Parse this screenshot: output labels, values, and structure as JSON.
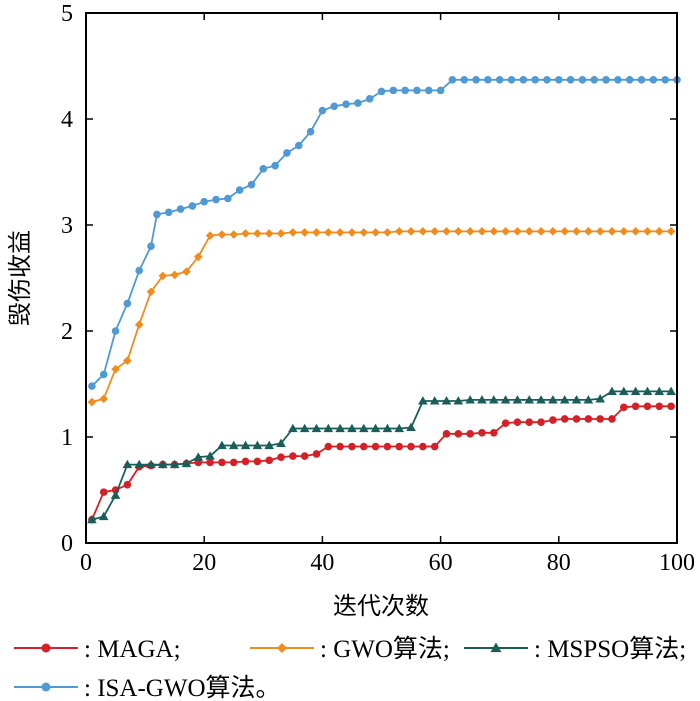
{
  "chart_data": {
    "type": "line",
    "xlabel": "迭代次数",
    "ylabel": "毁伤收益",
    "xlim": [
      0,
      100
    ],
    "ylim": [
      0,
      5
    ],
    "x_ticks": [
      "0",
      "20",
      "40",
      "60",
      "80",
      "100"
    ],
    "y_ticks": [
      "0",
      "1",
      "2",
      "3",
      "4",
      "5"
    ],
    "grid": false,
    "legend_position": "bottom",
    "series": [
      {
        "name": "MAGA",
        "legend_label": ": MAGA;",
        "color": "#d42026",
        "marker": "circle",
        "x": [
          1,
          3,
          5,
          7,
          9,
          11,
          13,
          15,
          17,
          19,
          21,
          23,
          25,
          27,
          29,
          31,
          33,
          35,
          37,
          39,
          41,
          43,
          45,
          47,
          49,
          51,
          53,
          55,
          57,
          59,
          61,
          63,
          65,
          67,
          69,
          71,
          73,
          75,
          77,
          79,
          81,
          83,
          85,
          87,
          89,
          91,
          93,
          95,
          97,
          99
        ],
        "values": [
          0.22,
          0.48,
          0.5,
          0.55,
          0.72,
          0.73,
          0.74,
          0.74,
          0.75,
          0.76,
          0.76,
          0.76,
          0.76,
          0.77,
          0.77,
          0.78,
          0.81,
          0.82,
          0.82,
          0.84,
          0.91,
          0.91,
          0.91,
          0.91,
          0.91,
          0.91,
          0.91,
          0.91,
          0.91,
          0.91,
          1.03,
          1.03,
          1.03,
          1.04,
          1.04,
          1.13,
          1.14,
          1.14,
          1.14,
          1.16,
          1.17,
          1.17,
          1.17,
          1.17,
          1.17,
          1.28,
          1.29,
          1.29,
          1.29,
          1.29
        ]
      },
      {
        "name": "GWO算法",
        "legend_label": ": GWO算法;",
        "color": "#f08c1b",
        "marker": "diamond",
        "x": [
          1,
          3,
          5,
          7,
          9,
          11,
          13,
          15,
          17,
          19,
          21,
          23,
          25,
          27,
          29,
          31,
          33,
          35,
          37,
          39,
          41,
          43,
          45,
          47,
          49,
          51,
          53,
          55,
          57,
          59,
          61,
          63,
          65,
          67,
          69,
          71,
          73,
          75,
          77,
          79,
          81,
          83,
          85,
          87,
          89,
          91,
          93,
          95,
          97,
          99
        ],
        "values": [
          1.33,
          1.36,
          1.64,
          1.72,
          2.06,
          2.37,
          2.52,
          2.53,
          2.56,
          2.7,
          2.9,
          2.91,
          2.91,
          2.92,
          2.92,
          2.92,
          2.92,
          2.93,
          2.93,
          2.93,
          2.93,
          2.93,
          2.93,
          2.93,
          2.93,
          2.93,
          2.94,
          2.94,
          2.94,
          2.94,
          2.94,
          2.94,
          2.94,
          2.94,
          2.94,
          2.94,
          2.94,
          2.94,
          2.94,
          2.94,
          2.94,
          2.94,
          2.94,
          2.94,
          2.94,
          2.94,
          2.94,
          2.94,
          2.94,
          2.94
        ]
      },
      {
        "name": "MSPSO算法",
        "legend_label": ": MSPSO算法;",
        "color": "#1a5e5a",
        "marker": "triangle",
        "x": [
          1,
          3,
          5,
          7,
          9,
          11,
          13,
          15,
          17,
          19,
          21,
          23,
          25,
          27,
          29,
          31,
          33,
          35,
          37,
          39,
          41,
          43,
          45,
          47,
          49,
          51,
          53,
          55,
          57,
          59,
          61,
          63,
          65,
          67,
          69,
          71,
          73,
          75,
          77,
          79,
          81,
          83,
          85,
          87,
          89,
          91,
          93,
          95,
          97,
          99
        ],
        "values": [
          0.22,
          0.25,
          0.45,
          0.74,
          0.74,
          0.74,
          0.74,
          0.74,
          0.75,
          0.81,
          0.82,
          0.92,
          0.92,
          0.92,
          0.92,
          0.92,
          0.94,
          1.08,
          1.08,
          1.08,
          1.08,
          1.08,
          1.08,
          1.08,
          1.08,
          1.08,
          1.08,
          1.09,
          1.34,
          1.34,
          1.34,
          1.34,
          1.35,
          1.35,
          1.35,
          1.35,
          1.35,
          1.35,
          1.35,
          1.35,
          1.35,
          1.35,
          1.35,
          1.36,
          1.43,
          1.43,
          1.43,
          1.43,
          1.43,
          1.43
        ]
      },
      {
        "name": "ISA-GWO算法",
        "legend_label": ": ISA-GWO算法。",
        "color": "#4f9ad3",
        "marker": "circle",
        "x": [
          1,
          3,
          5,
          7,
          9,
          11,
          12,
          14,
          16,
          18,
          20,
          22,
          24,
          26,
          28,
          30,
          32,
          34,
          36,
          38,
          40,
          42,
          44,
          46,
          48,
          50,
          52,
          54,
          56,
          58,
          60,
          62,
          64,
          66,
          68,
          70,
          72,
          74,
          76,
          78,
          80,
          82,
          84,
          86,
          88,
          90,
          92,
          94,
          96,
          98,
          100
        ],
        "values": [
          1.48,
          1.59,
          2.0,
          2.26,
          2.57,
          2.8,
          3.1,
          3.12,
          3.15,
          3.18,
          3.22,
          3.24,
          3.25,
          3.33,
          3.38,
          3.53,
          3.56,
          3.68,
          3.75,
          3.88,
          4.08,
          4.12,
          4.14,
          4.15,
          4.19,
          4.26,
          4.27,
          4.27,
          4.27,
          4.27,
          4.27,
          4.37,
          4.37,
          4.37,
          4.37,
          4.37,
          4.37,
          4.37,
          4.37,
          4.37,
          4.37,
          4.37,
          4.37,
          4.37,
          4.37,
          4.37,
          4.37,
          4.37,
          4.37,
          4.37,
          4.37
        ]
      }
    ]
  }
}
